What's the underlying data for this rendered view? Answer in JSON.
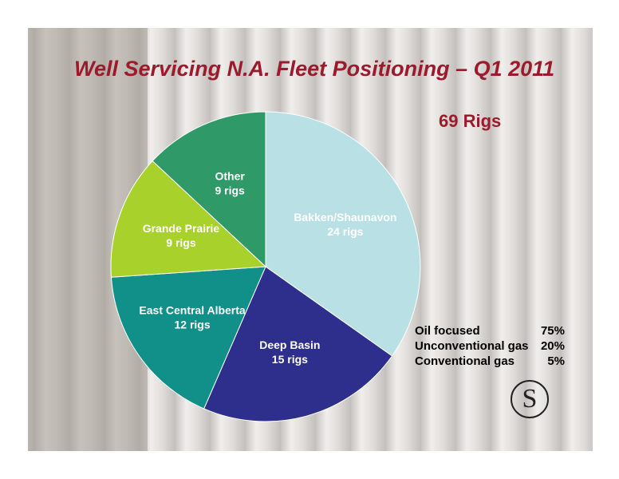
{
  "chart_data": {
    "type": "pie",
    "title": "Well Servicing N.A. Fleet Positioning – Q1 2011",
    "annotation": "69 Rigs",
    "categories": [
      "Bakken/Shaunavon",
      "Deep Basin",
      "East Central Alberta",
      "Grande Prairie",
      "Other"
    ],
    "values": [
      24,
      15,
      12,
      9,
      9
    ],
    "value_labels": [
      "24 rigs",
      "15 rigs",
      "12 rigs",
      "9 rigs",
      "9 rigs"
    ],
    "colors": [
      "#b9e0e4",
      "#2e2e8c",
      "#11908a",
      "#a9d12b",
      "#2f9a67"
    ],
    "breakdown": [
      [
        "Oil focused",
        "75%"
      ],
      [
        "Unconventional gas",
        "20%"
      ],
      [
        "Conventional gas",
        "5%"
      ]
    ]
  }
}
